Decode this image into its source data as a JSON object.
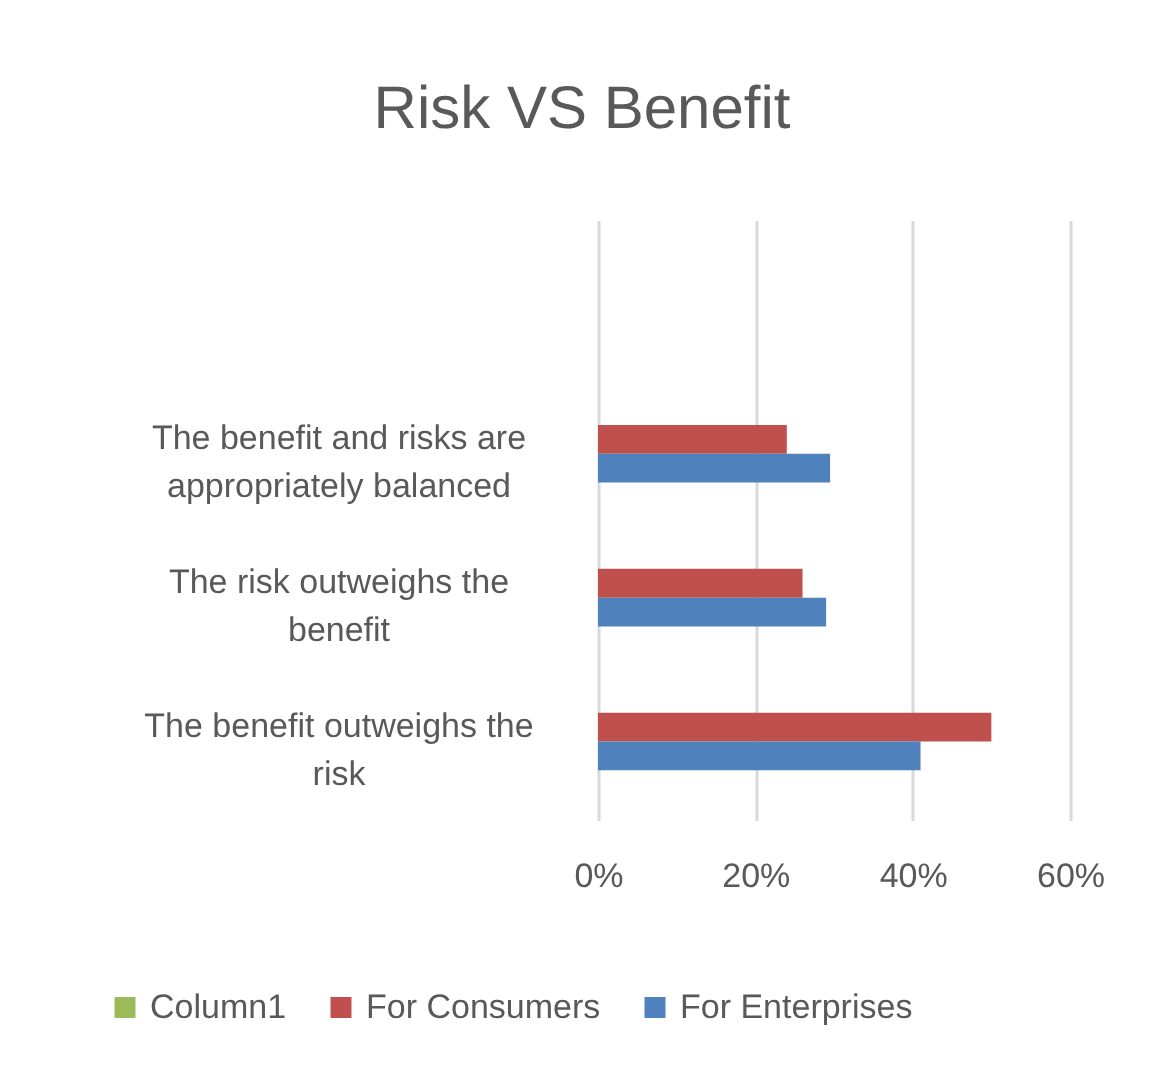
{
  "chart_data": {
    "type": "bar",
    "orientation": "horizontal",
    "title": "Risk VS Benefit",
    "categories": [
      "The benefit and risks are appropriately balanced",
      "The risk outweighs the benefit",
      "The benefit outweighs the risk"
    ],
    "series": [
      {
        "name": "Column1",
        "color": "#9bbb59",
        "values": [
          null,
          null,
          null
        ]
      },
      {
        "name": "For Consumers",
        "color": "#c0504d",
        "values": [
          24,
          26,
          50
        ]
      },
      {
        "name": "For Enterprises",
        "color": "#4f81bd",
        "values": [
          29.5,
          29,
          41
        ]
      }
    ],
    "xlim": [
      0,
      60
    ],
    "xticks": [
      {
        "value": 0,
        "label": "0%"
      },
      {
        "value": 20,
        "label": "20%"
      },
      {
        "value": 40,
        "label": "40%"
      },
      {
        "value": 60,
        "label": "60%"
      }
    ],
    "grid": "x",
    "legend": "bottom"
  }
}
